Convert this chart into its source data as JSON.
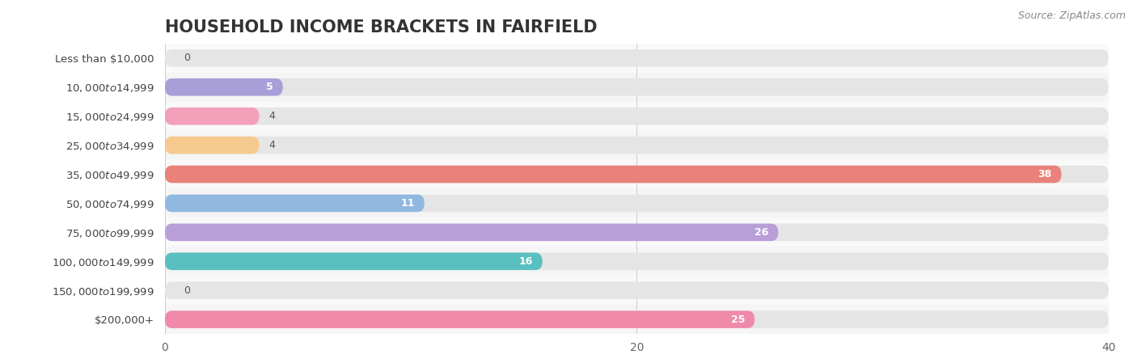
{
  "title": "HOUSEHOLD INCOME BRACKETS IN FAIRFIELD",
  "source": "Source: ZipAtlas.com",
  "categories": [
    "Less than $10,000",
    "$10,000 to $14,999",
    "$15,000 to $24,999",
    "$25,000 to $34,999",
    "$35,000 to $49,999",
    "$50,000 to $74,999",
    "$75,000 to $99,999",
    "$100,000 to $149,999",
    "$150,000 to $199,999",
    "$200,000+"
  ],
  "values": [
    0,
    5,
    4,
    4,
    38,
    11,
    26,
    16,
    0,
    25
  ],
  "bar_colors": [
    "#5ecece",
    "#a99fd8",
    "#f4a0ba",
    "#f6ca8e",
    "#e8827a",
    "#90b8e0",
    "#b89fd8",
    "#5abfbf",
    "#b0aee0",
    "#f08aaa"
  ],
  "bar_bg_color": "#e5e5e5",
  "xlim": [
    0,
    40
  ],
  "xticks": [
    0,
    20,
    40
  ],
  "title_fontsize": 15,
  "label_fontsize": 9.5,
  "value_fontsize": 9,
  "source_fontsize": 9,
  "background_color": "#ffffff",
  "row_bg_light": "#f5f5f5",
  "row_bg_dark": "#efefef"
}
